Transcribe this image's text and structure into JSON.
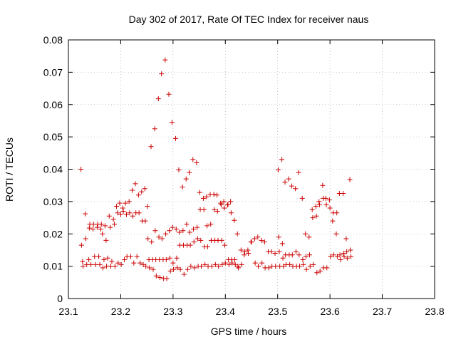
{
  "chart_data": {
    "type": "scatter",
    "title": "Day 302 of 2017, Rate Of TEC Index for receiver naus",
    "xlabel": "GPS time / hours",
    "ylabel": "ROTI / TECUs",
    "xlim": [
      23.1,
      23.8
    ],
    "ylim": [
      0,
      0.08
    ],
    "x_ticks": [
      "23.1",
      "23.2",
      "23.3",
      "23.4",
      "23.5",
      "23.6",
      "23.7",
      "23.8"
    ],
    "y_ticks": [
      "0",
      "0.01",
      "0.02",
      "0.03",
      "0.04",
      "0.05",
      "0.06",
      "0.07",
      "0.08"
    ],
    "x_tick_values": [
      23.1,
      23.2,
      23.3,
      23.4,
      23.5,
      23.6,
      23.7,
      23.8
    ],
    "y_tick_values": [
      0,
      0.01,
      0.02,
      0.03,
      0.04,
      0.05,
      0.06,
      0.07,
      0.08
    ],
    "grid": true,
    "marker": "+",
    "marker_color": "#cc0000",
    "series": [
      {
        "points": [
          [
            23.124,
            0.04
          ],
          [
            23.125,
            0.0165
          ],
          [
            23.127,
            0.0115
          ],
          [
            23.128,
            0.01
          ],
          [
            23.132,
            0.0262
          ],
          [
            23.133,
            0.0185
          ],
          [
            23.135,
            0.0105
          ],
          [
            23.139,
            0.012
          ],
          [
            23.14,
            0.0218
          ],
          [
            23.141,
            0.023
          ],
          [
            23.143,
            0.0105
          ],
          [
            23.147,
            0.0215
          ],
          [
            23.148,
            0.023
          ],
          [
            23.15,
            0.013
          ],
          [
            23.152,
            0.0105
          ],
          [
            23.155,
            0.022
          ],
          [
            23.156,
            0.023
          ],
          [
            23.158,
            0.013
          ],
          [
            23.16,
            0.0105
          ],
          [
            23.162,
            0.0215
          ],
          [
            23.163,
            0.023
          ],
          [
            23.165,
            0.02
          ],
          [
            23.166,
            0.0095
          ],
          [
            23.168,
            0.012
          ],
          [
            23.17,
            0.0225
          ],
          [
            23.172,
            0.018
          ],
          [
            23.173,
            0.01
          ],
          [
            23.175,
            0.0125
          ],
          [
            23.178,
            0.0255
          ],
          [
            23.18,
            0.022
          ],
          [
            23.181,
            0.01
          ],
          [
            23.183,
            0.0115
          ],
          [
            23.186,
            0.0245
          ],
          [
            23.188,
            0.023
          ],
          [
            23.189,
            0.01
          ],
          [
            23.192,
            0.0285
          ],
          [
            23.194,
            0.0265
          ],
          [
            23.195,
            0.011
          ],
          [
            23.198,
            0.0295
          ],
          [
            23.2,
            0.026
          ],
          [
            23.201,
            0.0105
          ],
          [
            23.204,
            0.028
          ],
          [
            23.205,
            0.027
          ],
          [
            23.207,
            0.012
          ],
          [
            23.209,
            0.0295
          ],
          [
            23.211,
            0.026
          ],
          [
            23.212,
            0.013
          ],
          [
            23.216,
            0.03
          ],
          [
            23.217,
            0.0265
          ],
          [
            23.219,
            0.013
          ],
          [
            23.222,
            0.0335
          ],
          [
            23.223,
            0.0255
          ],
          [
            23.225,
            0.011
          ],
          [
            23.228,
            0.0355
          ],
          [
            23.229,
            0.0265
          ],
          [
            23.231,
            0.013
          ],
          [
            23.234,
            0.032
          ],
          [
            23.235,
            0.0265
          ],
          [
            23.237,
            0.011
          ],
          [
            23.24,
            0.033
          ],
          [
            23.241,
            0.024
          ],
          [
            23.243,
            0.0105
          ],
          [
            23.246,
            0.034
          ],
          [
            23.247,
            0.024
          ],
          [
            23.248,
            0.01
          ],
          [
            23.251,
            0.0285
          ],
          [
            23.252,
            0.0185
          ],
          [
            23.254,
            0.012
          ],
          [
            23.255,
            0.0095
          ],
          [
            23.258,
            0.047
          ],
          [
            23.259,
            0.0175
          ],
          [
            23.261,
            0.012
          ],
          [
            23.262,
            0.009
          ],
          [
            23.265,
            0.0525
          ],
          [
            23.266,
            0.021
          ],
          [
            23.267,
            0.012
          ],
          [
            23.268,
            0.007
          ],
          [
            23.272,
            0.0618
          ],
          [
            23.273,
            0.019
          ],
          [
            23.274,
            0.012
          ],
          [
            23.275,
            0.0065
          ],
          [
            23.278,
            0.0695
          ],
          [
            23.279,
            0.0185
          ],
          [
            23.281,
            0.012
          ],
          [
            23.282,
            0.0062
          ],
          [
            23.285,
            0.0738
          ],
          [
            23.286,
            0.02
          ],
          [
            23.287,
            0.012
          ],
          [
            23.288,
            0.0062
          ],
          [
            23.292,
            0.0632
          ],
          [
            23.293,
            0.021
          ],
          [
            23.294,
            0.0125
          ],
          [
            23.295,
            0.0085
          ],
          [
            23.298,
            0.0545
          ],
          [
            23.299,
            0.022
          ],
          [
            23.3,
            0.011
          ],
          [
            23.301,
            0.009
          ],
          [
            23.305,
            0.0495
          ],
          [
            23.306,
            0.0215
          ],
          [
            23.307,
            0.0125
          ],
          [
            23.308,
            0.0095
          ],
          [
            23.311,
            0.0398
          ],
          [
            23.312,
            0.0205
          ],
          [
            23.313,
            0.0165
          ],
          [
            23.314,
            0.009
          ],
          [
            23.318,
            0.0345
          ],
          [
            23.319,
            0.021
          ],
          [
            23.32,
            0.0165
          ],
          [
            23.321,
            0.0075
          ],
          [
            23.325,
            0.037
          ],
          [
            23.326,
            0.023
          ],
          [
            23.327,
            0.0165
          ],
          [
            23.328,
            0.009
          ],
          [
            23.331,
            0.039
          ],
          [
            23.332,
            0.0205
          ],
          [
            23.333,
            0.0165
          ],
          [
            23.334,
            0.01
          ],
          [
            23.338,
            0.043
          ],
          [
            23.339,
            0.0215
          ],
          [
            23.34,
            0.0175
          ],
          [
            23.341,
            0.0095
          ],
          [
            23.345,
            0.042
          ],
          [
            23.346,
            0.022
          ],
          [
            23.347,
            0.0185
          ],
          [
            23.348,
            0.01
          ],
          [
            23.351,
            0.0328
          ],
          [
            23.352,
            0.0275
          ],
          [
            23.353,
            0.018
          ],
          [
            23.354,
            0.01
          ],
          [
            23.358,
            0.031
          ],
          [
            23.359,
            0.0275
          ],
          [
            23.36,
            0.016
          ],
          [
            23.361,
            0.0105
          ],
          [
            23.364,
            0.0315
          ],
          [
            23.365,
            0.0225
          ],
          [
            23.366,
            0.016
          ],
          [
            23.367,
            0.01
          ],
          [
            23.371,
            0.0322
          ],
          [
            23.372,
            0.023
          ],
          [
            23.373,
            0.018
          ],
          [
            23.374,
            0.01
          ],
          [
            23.378,
            0.0322
          ],
          [
            23.379,
            0.0275
          ],
          [
            23.38,
            0.018
          ],
          [
            23.381,
            0.0105
          ],
          [
            23.384,
            0.032
          ],
          [
            23.385,
            0.027
          ],
          [
            23.386,
            0.018
          ],
          [
            23.387,
            0.01
          ],
          [
            23.391,
            0.0295
          ],
          [
            23.392,
            0.029
          ],
          [
            23.393,
            0.018
          ],
          [
            23.394,
            0.0105
          ],
          [
            23.397,
            0.03
          ],
          [
            23.398,
            0.028
          ],
          [
            23.399,
            0.0165
          ],
          [
            23.4,
            0.011
          ],
          [
            23.404,
            0.029
          ],
          [
            23.405,
            0.029
          ],
          [
            23.406,
            0.012
          ],
          [
            23.407,
            0.0105
          ],
          [
            23.41,
            0.03
          ],
          [
            23.411,
            0.0265
          ],
          [
            23.412,
            0.012
          ],
          [
            23.413,
            0.011
          ],
          [
            23.417,
            0.0242
          ],
          [
            23.418,
            0.012
          ],
          [
            23.419,
            0.0105
          ],
          [
            23.423,
            0.02
          ],
          [
            23.424,
            0.01
          ],
          [
            23.425,
            0.0095
          ],
          [
            23.43,
            0.015
          ],
          [
            23.431,
            0.0105
          ],
          [
            23.436,
            0.0135
          ],
          [
            23.437,
            0.0145
          ],
          [
            23.443,
            0.015
          ],
          [
            23.444,
            0.014
          ],
          [
            23.449,
            0.0175
          ],
          [
            23.45,
            0.0175
          ],
          [
            23.456,
            0.0185
          ],
          [
            23.457,
            0.011
          ],
          [
            23.462,
            0.019
          ],
          [
            23.463,
            0.01
          ],
          [
            23.469,
            0.018
          ],
          [
            23.47,
            0.011
          ],
          [
            23.475,
            0.0175
          ],
          [
            23.476,
            0.0095
          ],
          [
            23.482,
            0.0145
          ],
          [
            23.483,
            0.0095
          ],
          [
            23.488,
            0.0145
          ],
          [
            23.489,
            0.01
          ],
          [
            23.495,
            0.014
          ],
          [
            23.496,
            0.01
          ],
          [
            23.501,
            0.0398
          ],
          [
            23.502,
            0.019
          ],
          [
            23.503,
            0.0145
          ],
          [
            23.504,
            0.01
          ],
          [
            23.508,
            0.043
          ],
          [
            23.509,
            0.017
          ],
          [
            23.51,
            0.0125
          ],
          [
            23.511,
            0.01
          ],
          [
            23.514,
            0.036
          ],
          [
            23.515,
            0.0135
          ],
          [
            23.516,
            0.0105
          ],
          [
            23.521,
            0.037
          ],
          [
            23.522,
            0.0135
          ],
          [
            23.523,
            0.0105
          ],
          [
            23.527,
            0.0348
          ],
          [
            23.528,
            0.0135
          ],
          [
            23.529,
            0.01
          ],
          [
            23.534,
            0.034
          ],
          [
            23.535,
            0.0145
          ],
          [
            23.536,
            0.01
          ],
          [
            23.54,
            0.039
          ],
          [
            23.541,
            0.0135
          ],
          [
            23.542,
            0.01
          ],
          [
            23.547,
            0.031
          ],
          [
            23.548,
            0.012
          ],
          [
            23.549,
            0.0105
          ],
          [
            23.553,
            0.02
          ],
          [
            23.554,
            0.013
          ],
          [
            23.555,
            0.009
          ],
          [
            23.56,
            0.019
          ],
          [
            23.561,
            0.0135
          ],
          [
            23.562,
            0.01
          ],
          [
            23.566,
            0.0275
          ],
          [
            23.567,
            0.025
          ],
          [
            23.568,
            0.0105
          ],
          [
            23.573,
            0.0285
          ],
          [
            23.574,
            0.0255
          ],
          [
            23.575,
            0.008
          ],
          [
            23.579,
            0.03
          ],
          [
            23.58,
            0.029
          ],
          [
            23.581,
            0.0085
          ],
          [
            23.586,
            0.035
          ],
          [
            23.587,
            0.031
          ],
          [
            23.588,
            0.0095
          ],
          [
            23.592,
            0.031
          ],
          [
            23.593,
            0.029
          ],
          [
            23.594,
            0.0095
          ],
          [
            23.599,
            0.0305
          ],
          [
            23.6,
            0.028
          ],
          [
            23.601,
            0.013
          ],
          [
            23.605,
            0.024
          ],
          [
            23.606,
            0.0265
          ],
          [
            23.607,
            0.0135
          ],
          [
            23.612,
            0.02
          ],
          [
            23.613,
            0.0265
          ],
          [
            23.614,
            0.013
          ],
          [
            23.618,
            0.0325
          ],
          [
            23.619,
            0.0135
          ],
          [
            23.62,
            0.012
          ],
          [
            23.625,
            0.0325
          ],
          [
            23.626,
            0.014
          ],
          [
            23.627,
            0.013
          ],
          [
            23.631,
            0.0185
          ],
          [
            23.632,
            0.0145
          ],
          [
            23.633,
            0.0125
          ],
          [
            23.638,
            0.0368
          ],
          [
            23.639,
            0.015
          ],
          [
            23.64,
            0.013
          ]
        ]
      }
    ]
  }
}
